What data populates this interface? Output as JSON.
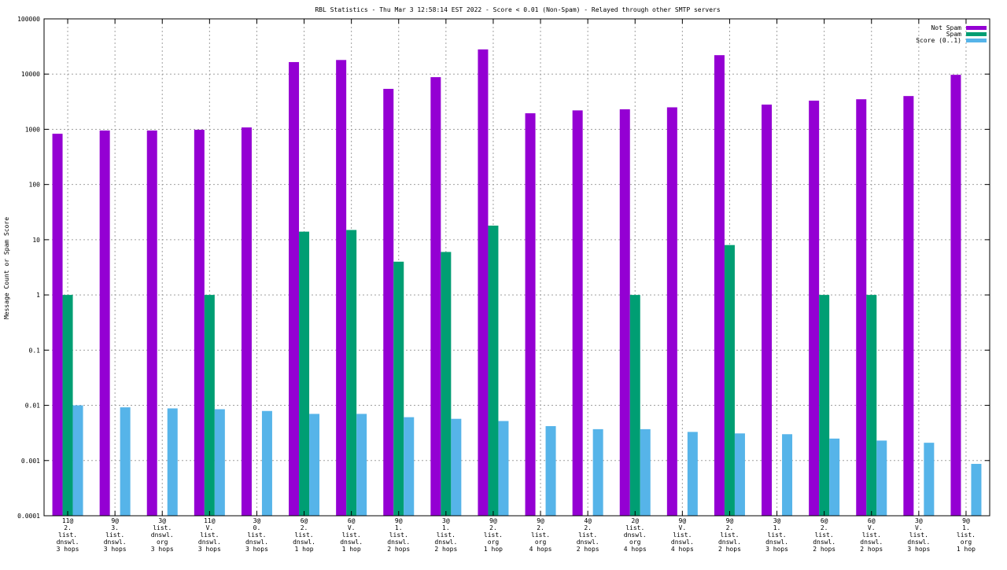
{
  "chart_data": {
    "type": "bar",
    "title": "RBL Statistics - Thu Mar  3 12:58:14 EST 2022 - Score < 0.01 (Non-Spam) - Relayed through other SMTP servers",
    "xlabel": "",
    "ylabel": "Message Count or Spam Score",
    "yscale": "log",
    "ylim": [
      0.0001,
      100000
    ],
    "yticks": [
      "0.0001",
      "0.001",
      "0.01",
      "0.1",
      "1",
      "10",
      "100",
      "1000",
      "10000",
      "100000"
    ],
    "grid": true,
    "legend_position": "top-right",
    "categories": [
      [
        "11@",
        "2.",
        "list.",
        "dnswl.",
        "3 hops"
      ],
      [
        "9@",
        "3.",
        "list.",
        "dnswl.",
        "3 hops"
      ],
      [
        "3@",
        "list.",
        "dnswl.",
        "org",
        "3 hops"
      ],
      [
        "11@",
        "V.",
        "list.",
        "dnswl.",
        "3 hops"
      ],
      [
        "3@",
        "0.",
        "list.",
        "dnswl.",
        "3 hops"
      ],
      [
        "6@",
        "2.",
        "list.",
        "dnswl.",
        "1 hop"
      ],
      [
        "6@",
        "V.",
        "list.",
        "dnswl.",
        "1 hop"
      ],
      [
        "9@",
        "1.",
        "list.",
        "dnswl.",
        "2 hops"
      ],
      [
        "3@",
        "1.",
        "list.",
        "dnswl.",
        "2 hops"
      ],
      [
        "9@",
        "2.",
        "list.",
        "org",
        "1 hop"
      ],
      [
        "9@",
        "2.",
        "list.",
        "org",
        "4 hops"
      ],
      [
        "4@",
        "2.",
        "list.",
        "dnswl.",
        "2 hops"
      ],
      [
        "2@",
        "list.",
        "dnswl.",
        "org",
        "4 hops"
      ],
      [
        "9@",
        "V.",
        "list.",
        "dnswl.",
        "4 hops"
      ],
      [
        "9@",
        "2.",
        "list.",
        "dnswl.",
        "2 hops"
      ],
      [
        "3@",
        "1.",
        "list.",
        "dnswl.",
        "3 hops"
      ],
      [
        "6@",
        "2.",
        "list.",
        "dnswl.",
        "2 hops"
      ],
      [
        "6@",
        "V.",
        "list.",
        "dnswl.",
        "2 hops"
      ],
      [
        "3@",
        "V.",
        "list.",
        "dnswl.",
        "3 hops"
      ],
      [
        "9@",
        "1.",
        "list.",
        "org",
        "1 hop"
      ]
    ],
    "series": [
      {
        "name": "Not Spam",
        "color": "#9400d3",
        "values": [
          830,
          950,
          950,
          980,
          1080,
          16500,
          18000,
          5400,
          8800,
          28000,
          1950,
          2200,
          2300,
          2500,
          22000,
          2800,
          3300,
          3500,
          4000,
          9700
        ]
      },
      {
        "name": "Spam",
        "color": "#009e73",
        "values": [
          1,
          null,
          null,
          1,
          null,
          14,
          15,
          4,
          6,
          18,
          null,
          null,
          1,
          null,
          8,
          null,
          1,
          1,
          null,
          null
        ]
      },
      {
        "name": "Score (0..1)",
        "color": "#56b4e9",
        "values": [
          0.01,
          0.0092,
          0.0088,
          0.0085,
          0.0079,
          0.007,
          0.007,
          0.0061,
          0.0057,
          0.0052,
          0.0042,
          0.0037,
          0.0037,
          0.0033,
          0.0031,
          0.003,
          0.0025,
          0.0023,
          0.0021,
          0.00087
        ]
      }
    ]
  }
}
